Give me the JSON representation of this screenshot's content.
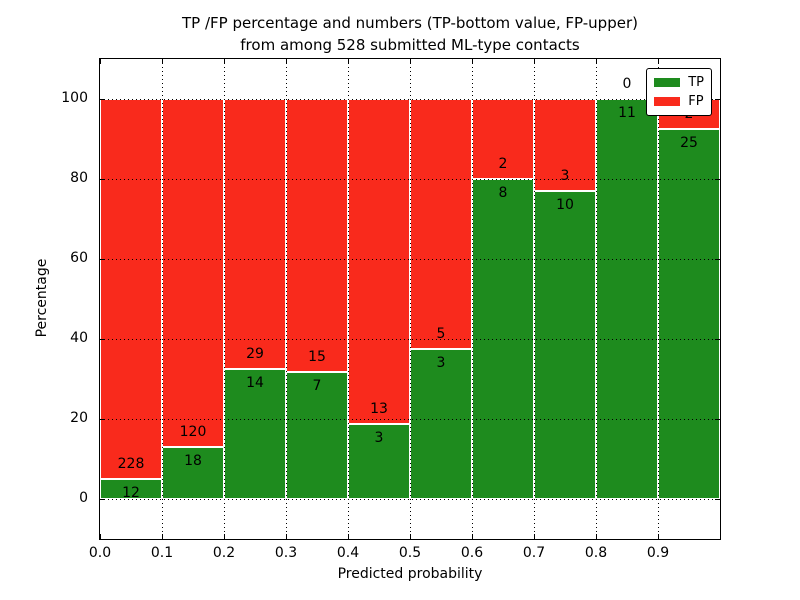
{
  "title": {
    "line1": "TP /FP percentage and numbers (TP-bottom value, FP-upper)",
    "line2": "from among 528 submitted ML-type contacts"
  },
  "chart_data": {
    "type": "bar",
    "stacked": true,
    "title": "TP /FP percentage and numbers (TP-bottom value, FP-upper)\nfrom among 528 submitted ML-type contacts",
    "xlabel": "Predicted probability",
    "ylabel": "Percentage",
    "total_contacts": 528,
    "categories": [
      "0.0-0.1",
      "0.1-0.2",
      "0.2-0.3",
      "0.3-0.4",
      "0.4-0.5",
      "0.5-0.6",
      "0.6-0.7",
      "0.7-0.8",
      "0.8-0.9",
      "0.9-1.0"
    ],
    "x_ticks": [
      "0.0",
      "0.1",
      "0.2",
      "0.3",
      "0.4",
      "0.5",
      "0.6",
      "0.7",
      "0.8",
      "0.9"
    ],
    "y_ticks": [
      0,
      20,
      40,
      60,
      80,
      100
    ],
    "xlim": [
      0.0,
      1.0
    ],
    "ylim": [
      -10,
      110
    ],
    "grid": true,
    "bar_edge_color": "#ffffff",
    "series": [
      {
        "name": "TP",
        "color": "#1e8b1e",
        "counts": [
          12,
          18,
          14,
          7,
          3,
          3,
          8,
          10,
          11,
          25
        ],
        "pct_of_bin": [
          5.0,
          13.0,
          32.6,
          31.8,
          18.8,
          37.5,
          80.0,
          76.9,
          100.0,
          92.6
        ]
      },
      {
        "name": "FP",
        "color": "#f92a1c",
        "counts": [
          228,
          120,
          29,
          15,
          13,
          5,
          2,
          3,
          0,
          2
        ],
        "pct_of_bin": [
          95.0,
          87.0,
          67.4,
          68.2,
          81.2,
          62.5,
          20.0,
          23.1,
          0.0,
          7.4
        ]
      }
    ],
    "legend": {
      "position": "upper right",
      "entries": [
        {
          "label": "TP",
          "color": "#1e8b1e"
        },
        {
          "label": "FP",
          "color": "#f92a1c"
        }
      ]
    }
  }
}
